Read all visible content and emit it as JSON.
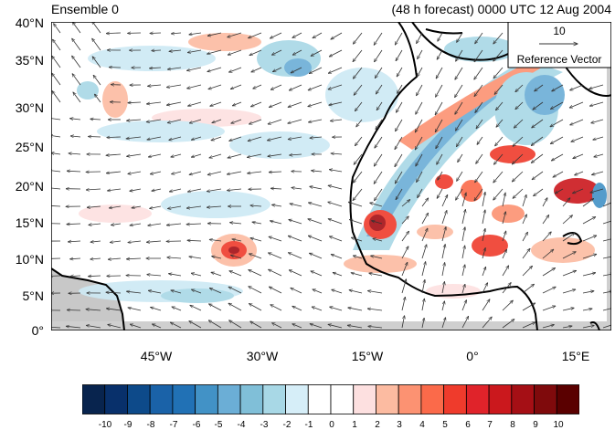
{
  "title_left": "Ensemble 0",
  "title_right": "(48 h forecast) 0000 UTC 12 Aug 2004",
  "reference": {
    "value": "10",
    "label": "Reference Vector"
  },
  "y_ticks": [
    "40°N",
    "35°N",
    "30°N",
    "25°N",
    "20°N",
    "15°N",
    "10°N",
    "5°N",
    "0°"
  ],
  "x_ticks": [
    "45°W",
    "30°W",
    "15°W",
    "0°",
    "15°E"
  ],
  "colorbar": {
    "labels": [
      "-10",
      "-9",
      "-8",
      "-7",
      "-6",
      "-5",
      "-4",
      "-3",
      "-2",
      "-1",
      "0",
      "1",
      "2",
      "3",
      "4",
      "5",
      "6",
      "7",
      "8",
      "9",
      "10"
    ],
    "colors": [
      "#08244e",
      "#08306b",
      "#0d4a8a",
      "#1a62a8",
      "#2171b5",
      "#4292c6",
      "#6baed6",
      "#80bfd8",
      "#a8d8e6",
      "#d6eef8",
      "#ffffff",
      "#ffffff",
      "#fde0e0",
      "#fcbba1",
      "#fc9272",
      "#fb6a4a",
      "#ef3b2c",
      "#e0232a",
      "#cb181d",
      "#a50f15",
      "#7f0a0c",
      "#5a0000"
    ]
  }
}
